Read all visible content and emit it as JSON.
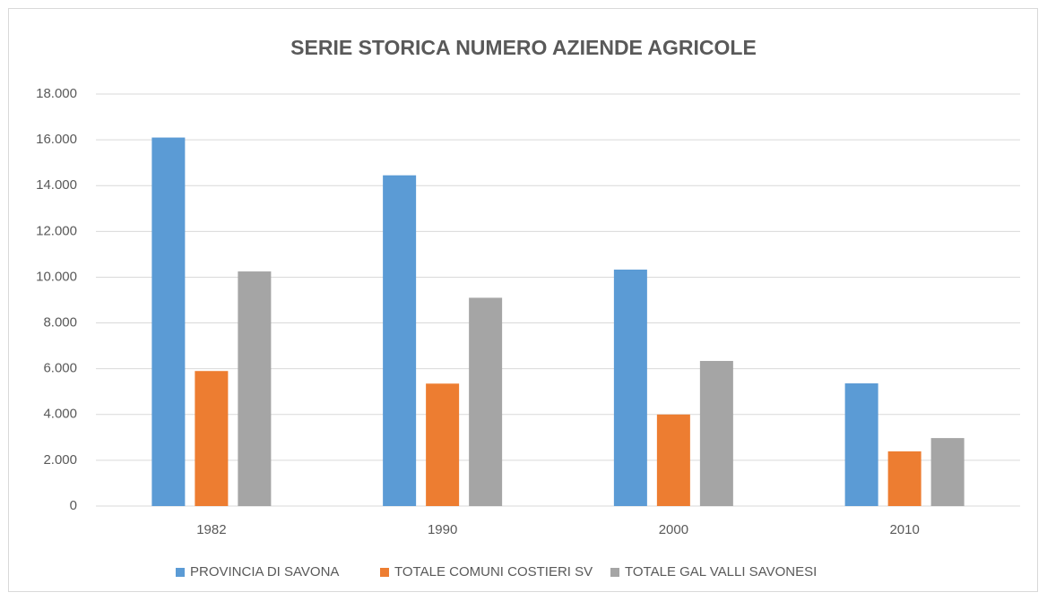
{
  "chart_data": {
    "type": "bar",
    "title": "SERIE STORICA NUMERO AZIENDE AGRICOLE",
    "categories": [
      "1982",
      "1990",
      "2000",
      "2010"
    ],
    "series": [
      {
        "name": "PROVINCIA DI SAVONA",
        "color": "#5b9bd5",
        "values": [
          16100,
          14450,
          10330,
          5360
        ]
      },
      {
        "name": "TOTALE COMUNI COSTIERI SV",
        "color": "#ed7d31",
        "values": [
          5900,
          5350,
          4000,
          2390
        ]
      },
      {
        "name": "TOTALE GAL VALLI SAVONESI",
        "color": "#a5a5a5",
        "values": [
          10250,
          9100,
          6340,
          2970
        ]
      }
    ],
    "ylim": [
      0,
      18000
    ],
    "yticks": [
      0,
      {
        "value": 2000,
        "label": "2.000"
      },
      {
        "value": 4000,
        "label": "4.000"
      },
      {
        "value": 6000,
        "label": "6.000"
      },
      {
        "value": 8000,
        "label": "8.000"
      },
      {
        "value": 10000,
        "label": "10.000"
      },
      {
        "value": 12000,
        "label": "12.000"
      },
      {
        "value": 14000,
        "label": "14.000"
      },
      {
        "value": 16000,
        "label": "16.000"
      },
      {
        "value": 18000,
        "label": "18.000"
      }
    ],
    "grid": true,
    "legend": "bottom"
  }
}
